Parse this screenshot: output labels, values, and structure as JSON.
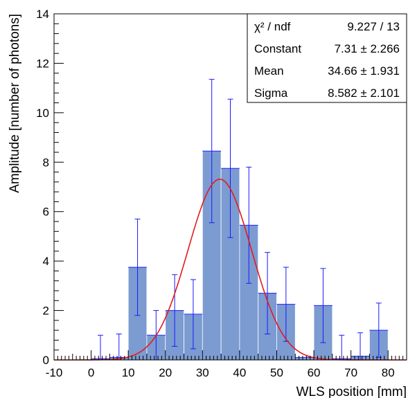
{
  "chart_data": {
    "type": "bar",
    "xlabel": "WLS position [mm]",
    "ylabel": "Amplitude [number of photons]",
    "xlim": [
      -10,
      85
    ],
    "ylim": [
      0,
      14
    ],
    "x_ticks": [
      -10,
      0,
      10,
      20,
      30,
      40,
      50,
      60,
      70,
      80
    ],
    "y_ticks": [
      0,
      2,
      4,
      6,
      8,
      10,
      12,
      14
    ],
    "bar_color": "#7b9bd1",
    "error_color": "#1a1aff",
    "fit_color": "#e41a1c",
    "bin_width": 5,
    "bins": [
      {
        "x": -10,
        "value": 0,
        "err": 0
      },
      {
        "x": -5,
        "value": 0,
        "err": 0
      },
      {
        "x": 0,
        "value": 0.05,
        "err": 0.95
      },
      {
        "x": 5,
        "value": 0.1,
        "err": 0.95
      },
      {
        "x": 10,
        "value": 3.75,
        "err": 1.95
      },
      {
        "x": 15,
        "value": 1.0,
        "err": 1.0
      },
      {
        "x": 20,
        "value": 2.0,
        "err": 1.45
      },
      {
        "x": 25,
        "value": 1.85,
        "err": 1.4
      },
      {
        "x": 30,
        "value": 8.45,
        "err": 2.9
      },
      {
        "x": 35,
        "value": 7.75,
        "err": 2.8
      },
      {
        "x": 40,
        "value": 5.45,
        "err": 2.35
      },
      {
        "x": 45,
        "value": 2.7,
        "err": 1.65
      },
      {
        "x": 50,
        "value": 2.25,
        "err": 1.5
      },
      {
        "x": 55,
        "value": 0.1,
        "err": 0
      },
      {
        "x": 60,
        "value": 2.2,
        "err": 1.5
      },
      {
        "x": 65,
        "value": 0.05,
        "err": 0.95
      },
      {
        "x": 70,
        "value": 0.15,
        "err": 0.95
      },
      {
        "x": 75,
        "value": 1.2,
        "err": 1.1
      },
      {
        "x": 80,
        "value": 0,
        "err": 0
      }
    ],
    "fit": {
      "function": "gaus",
      "constant": 7.31,
      "mean": 34.66,
      "sigma": 8.582
    },
    "stats": [
      {
        "label": "χ² / ndf",
        "value": "9.227 / 13"
      },
      {
        "label": "Constant",
        "value": "7.31 ± 2.266"
      },
      {
        "label": "Mean",
        "value": "34.66 ± 1.931"
      },
      {
        "label": "Sigma",
        "value": "8.582 ± 2.101"
      }
    ],
    "grid": false,
    "legend": "top-right"
  }
}
